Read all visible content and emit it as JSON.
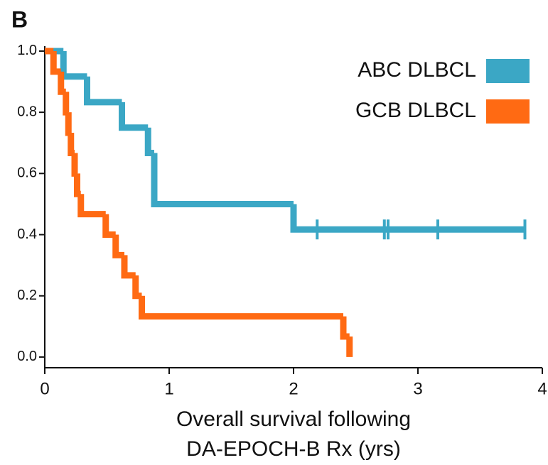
{
  "chart_data": {
    "type": "step",
    "panel_label": "B",
    "x_label": [
      "Overall survival following",
      "DA-EPOCH-B Rx (yrs)"
    ],
    "xlim": [
      0,
      4
    ],
    "xticks": [
      0,
      1,
      2,
      3,
      4
    ],
    "ylim": [
      -0.035,
      1.015
    ],
    "yticks": [
      {
        "value": 0,
        "label": "0.0"
      },
      {
        "value": 0.2,
        "label": "0.2"
      },
      {
        "value": 0.4,
        "label": "0.4"
      },
      {
        "value": 0.6,
        "label": "0.6"
      },
      {
        "value": 0.8,
        "label": "0.8"
      },
      {
        "value": 1,
        "label": "1.0"
      }
    ],
    "legend": "upper right",
    "series": [
      {
        "name": "ABC DLBCL",
        "color": "#3ba7c5",
        "x": [
          0,
          0.15,
          0.34,
          0.62,
          0.83,
          0.88,
          2.0,
          3.86
        ],
        "values": [
          1.0,
          0.917,
          0.833,
          0.75,
          0.667,
          0.5,
          0.417,
          0.417
        ],
        "censored": [
          2.19,
          2.73,
          2.76,
          3.16,
          3.86
        ]
      },
      {
        "name": "GCB DLBCL",
        "color": "#ff6a13",
        "x": [
          0,
          0.07,
          0.13,
          0.17,
          0.19,
          0.21,
          0.24,
          0.26,
          0.29,
          0.49,
          0.57,
          0.64,
          0.73,
          0.78,
          2.4,
          2.45
        ],
        "values": [
          1.0,
          0.933,
          0.867,
          0.8,
          0.733,
          0.667,
          0.6,
          0.533,
          0.467,
          0.4,
          0.333,
          0.267,
          0.2,
          0.133,
          0.067,
          0.0
        ]
      }
    ]
  }
}
